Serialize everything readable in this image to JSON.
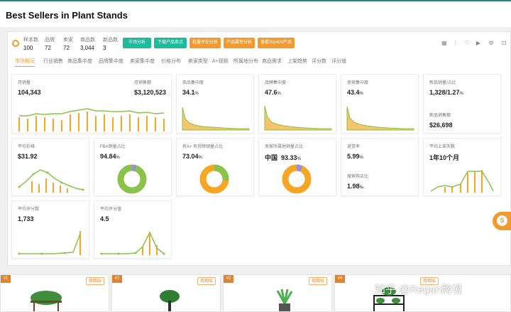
{
  "page": {
    "title": "Best Sellers in Plant Stands"
  },
  "stats": [
    {
      "label": "样本数",
      "value": "100"
    },
    {
      "label": "品牌",
      "value": "72"
    },
    {
      "label": "卖家",
      "value": "72"
    },
    {
      "label": "商品数",
      "value": "3,044"
    },
    {
      "label": "新品数",
      "value": "3"
    }
  ],
  "toolbar": {
    "buttons": [
      {
        "label": "市场分析",
        "color": "#1abc9c"
      },
      {
        "label": "下载产品卖点",
        "color": "#1abc9c"
      },
      {
        "label": "批量评论分析",
        "color": "#f29a2e"
      },
      {
        "label": "产品属性分析",
        "color": "#f29a2e"
      },
      {
        "label": "查看Top400产品",
        "color": "#f29a2e"
      }
    ],
    "icons": [
      "grid-icon",
      "more-icon",
      "heart-icon",
      "video-icon",
      "gear-icon",
      "expand-icon"
    ]
  },
  "tabs": [
    "市场概况",
    "行业销售",
    "商品集中度",
    "品牌集中度",
    "卖家集中度",
    "价格分布",
    "卖家类型",
    "A+视频",
    "所属地分布",
    "商品需求",
    "上架趋势",
    "评分数",
    "评分值"
  ],
  "active_tab": 0,
  "cards": {
    "monthly_sales": {
      "label": "月销量",
      "value": "104,343"
    },
    "monthly_revenue": {
      "label": "月销售额",
      "value": "$3,120,523"
    },
    "product_concentration": {
      "label": "商品集中度",
      "value": "34.1",
      "unit": "%"
    },
    "brand_concentration": {
      "label": "品牌集中度",
      "value": "47.6",
      "unit": "%"
    },
    "seller_concentration": {
      "label": "卖家集中度",
      "value": "43.4",
      "unit": "%"
    },
    "new_products": {
      "label": "新品销量/占比",
      "value": "1,328/1.27",
      "unit": "%",
      "sub_label": "新品销售额",
      "sub_value": "$26,698"
    },
    "avg_price": {
      "label": "平均价格",
      "value": "$31.92"
    },
    "fba_share": {
      "label": "FBA销量占比",
      "value": "94.84",
      "unit": "%"
    },
    "aplus_share": {
      "label": "有A+ 有视频销量占比",
      "value": "73.04",
      "unit": "%"
    },
    "seller_region": {
      "label": "卖家所属地销量占比",
      "region": "中国",
      "value": "93.33",
      "unit": "%"
    },
    "return_rate": {
      "label": "退货率",
      "value": "5.99",
      "unit": "%",
      "sub_label": "搜索购买比",
      "sub_value": "1.98",
      "sub_unit": "‰"
    },
    "avg_listing_age": {
      "label": "平均上架天数",
      "value": "1年10个月"
    },
    "avg_rating_count": {
      "label": "平均评分数",
      "value": "1,733"
    },
    "avg_rating": {
      "label": "平均评分值",
      "value": "4.5"
    }
  },
  "bottom": {
    "products": [
      {
        "rank": "#1",
        "find": "找相似"
      },
      {
        "rank": "#2",
        "find": "找相似"
      },
      {
        "rank": "#3",
        "find": "找相似"
      },
      {
        "rank": "#4",
        "find": "找相似"
      }
    ],
    "watermark": "知乎 @Regan跨境"
  },
  "float_button": {
    "label": "S"
  },
  "colors": {
    "accent": "#f29a2e",
    "teal": "#1abc9c",
    "green": "#8bc34a",
    "orange": "#f5a623",
    "purple": "#9b8fd6"
  }
}
